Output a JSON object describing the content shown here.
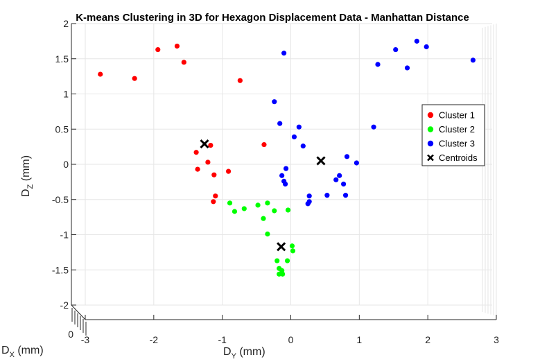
{
  "chart_data": {
    "type": "scatter",
    "title": "K-means Clustering in 3D for Hexagon Displacement Data - Manhattan Distance",
    "xlabel": {
      "main": "D",
      "sub": "Y",
      "unit": " (mm)"
    },
    "ylabel": {
      "main": "D",
      "sub": "Z",
      "unit": " (mm)"
    },
    "zlabel": {
      "main": "D",
      "sub": "X",
      "unit": " (mm)"
    },
    "xlim": [
      -3,
      3
    ],
    "ylim": [
      -2,
      2
    ],
    "xticks": [
      "-3",
      "-2",
      "-1",
      "0",
      "1",
      "2",
      "3"
    ],
    "yticks": [
      "-2",
      "-1.5",
      "-1",
      "-0.5",
      "0",
      "0.5",
      "1",
      "1.5",
      "2"
    ],
    "zticks": [
      "0"
    ],
    "grid": true,
    "legend_position": "right",
    "series": [
      {
        "name": "Cluster 1",
        "color": "#ff0000",
        "marker": "circle",
        "points": [
          [
            -2.78,
            1.28
          ],
          [
            -2.28,
            1.22
          ],
          [
            -1.94,
            1.63
          ],
          [
            -1.66,
            1.68
          ],
          [
            -1.56,
            1.45
          ],
          [
            -0.74,
            1.19
          ],
          [
            -1.17,
            0.27
          ],
          [
            -0.39,
            0.28
          ],
          [
            -1.38,
            0.17
          ],
          [
            -1.21,
            0.03
          ],
          [
            -1.36,
            -0.07
          ],
          [
            -0.91,
            -0.1
          ],
          [
            -1.12,
            -0.15
          ],
          [
            -1.1,
            -0.45
          ],
          [
            -1.13,
            -0.53
          ]
        ]
      },
      {
        "name": "Cluster 2",
        "color": "#00ff00",
        "marker": "circle",
        "points": [
          [
            -0.89,
            -0.55
          ],
          [
            -0.82,
            -0.67
          ],
          [
            -0.68,
            -0.63
          ],
          [
            -0.48,
            -0.58
          ],
          [
            -0.34,
            -0.55
          ],
          [
            -0.24,
            -0.66
          ],
          [
            -0.04,
            -0.65
          ],
          [
            -0.4,
            -0.77
          ],
          [
            -0.34,
            -0.99
          ],
          [
            0.02,
            -1.16
          ],
          [
            0.03,
            -1.23
          ],
          [
            -0.2,
            -1.37
          ],
          [
            -0.05,
            -1.37
          ],
          [
            -0.17,
            -1.48
          ],
          [
            -0.13,
            -1.51
          ],
          [
            -0.17,
            -1.56
          ],
          [
            -0.12,
            -1.56
          ]
        ]
      },
      {
        "name": "Cluster 3",
        "color": "#0000ff",
        "marker": "circle",
        "points": [
          [
            -0.1,
            1.58
          ],
          [
            -0.24,
            0.89
          ],
          [
            -0.16,
            0.58
          ],
          [
            0.12,
            0.53
          ],
          [
            0.05,
            0.39
          ],
          [
            0.18,
            0.26
          ],
          [
            -0.07,
            -0.06
          ],
          [
            -0.13,
            -0.16
          ],
          [
            -0.1,
            -0.24
          ],
          [
            -0.08,
            -0.28
          ],
          [
            0.27,
            -0.45
          ],
          [
            0.27,
            -0.53
          ],
          [
            0.25,
            -0.56
          ],
          [
            0.53,
            -0.44
          ],
          [
            0.66,
            -0.22
          ],
          [
            0.71,
            -0.16
          ],
          [
            0.77,
            -0.28
          ],
          [
            0.8,
            -0.44
          ],
          [
            0.82,
            0.11
          ],
          [
            0.96,
            0.02
          ],
          [
            1.21,
            0.53
          ],
          [
            1.27,
            1.42
          ],
          [
            1.53,
            1.63
          ],
          [
            1.7,
            1.37
          ],
          [
            1.84,
            1.75
          ],
          [
            1.98,
            1.67
          ],
          [
            2.66,
            1.48
          ]
        ]
      },
      {
        "name": "Centroids",
        "color": "#000000",
        "marker": "x",
        "points": [
          [
            -1.26,
            0.29
          ],
          [
            0.44,
            0.05
          ],
          [
            -0.14,
            -1.17
          ]
        ]
      }
    ]
  }
}
